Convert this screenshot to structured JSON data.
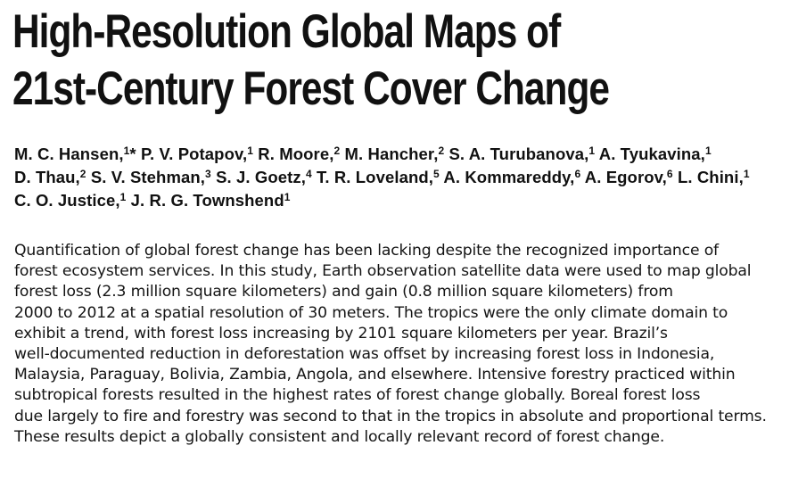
{
  "title": {
    "line1": "High-Resolution Global Maps of",
    "line2": "21st-Century Forest Cover Change"
  },
  "authors": [
    [
      {
        "name": "M. C. Hansen,",
        "aff": "1",
        "after": "* "
      },
      {
        "name": "P. V. Potapov,",
        "aff": "1",
        "after": " "
      },
      {
        "name": "R. Moore,",
        "aff": "2",
        "after": " "
      },
      {
        "name": "M. Hancher,",
        "aff": "2",
        "after": " "
      },
      {
        "name": "S. A. Turubanova,",
        "aff": "1",
        "after": " "
      },
      {
        "name": "A. Tyukavina,",
        "aff": "1",
        "after": ""
      }
    ],
    [
      {
        "name": "D. Thau,",
        "aff": "2",
        "after": " "
      },
      {
        "name": "S. V. Stehman,",
        "aff": "3",
        "after": " "
      },
      {
        "name": "S. J. Goetz,",
        "aff": "4",
        "after": " "
      },
      {
        "name": "T. R. Loveland,",
        "aff": "5",
        "after": " "
      },
      {
        "name": "A. Kommareddy,",
        "aff": "6",
        "after": " "
      },
      {
        "name": "A. Egorov,",
        "aff": "6",
        "after": " "
      },
      {
        "name": "L. Chini,",
        "aff": "1",
        "after": ""
      }
    ],
    [
      {
        "name": "C. O. Justice,",
        "aff": "1",
        "after": " "
      },
      {
        "name": "J. R. G. Townshend",
        "aff": "1",
        "after": ""
      }
    ]
  ],
  "abstract_lines": [
    "Quantification of global forest change has been lacking despite the recognized importance of",
    "forest ecosystem services. In this study, Earth observation satellite data were used to map global",
    "forest loss (2.3 million square kilometers) and gain (0.8 million square kilometers) from",
    "2000 to 2012 at a spatial resolution of 30 meters. The tropics were the only climate domain to",
    "exhibit a trend, with forest loss increasing by 2101 square kilometers per year. Brazil’s",
    "well-documented reduction in deforestation was offset by increasing forest loss in Indonesia,",
    "Malaysia, Paraguay, Bolivia, Zambia, Angola, and elsewhere. Intensive forestry practiced within",
    "subtropical forests resulted in the highest rates of forest change globally. Boreal forest loss",
    "due largely to fire and forestry was second to that in the tropics in absolute and proportional terms.",
    "These results depict a globally consistent and locally relevant record of forest change."
  ]
}
